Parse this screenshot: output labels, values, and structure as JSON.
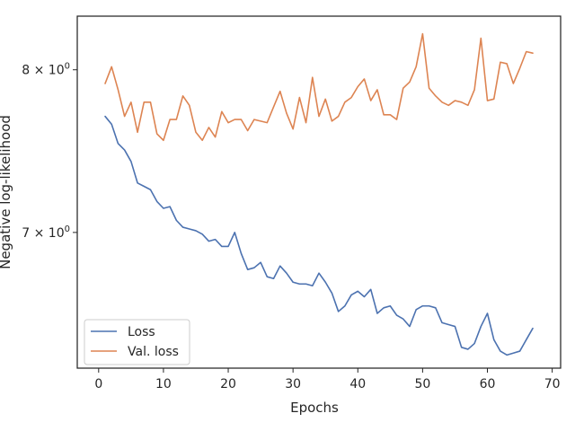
{
  "chart_data": {
    "type": "line",
    "title": "",
    "xlabel": "Epochs",
    "ylabel": "Negative log-likelihood",
    "yscale": "log",
    "xlim": [
      -3.3,
      71.3
    ],
    "ylim": [
      6.262,
      8.36
    ],
    "x_ticks": [
      {
        "value": 0,
        "label": "0"
      },
      {
        "value": 10,
        "label": "10"
      },
      {
        "value": 20,
        "label": "20"
      },
      {
        "value": 30,
        "label": "30"
      },
      {
        "value": 40,
        "label": "40"
      },
      {
        "value": 50,
        "label": "50"
      },
      {
        "value": 60,
        "label": "60"
      },
      {
        "value": 70,
        "label": "70"
      }
    ],
    "y_ticks": [
      {
        "value": 7,
        "label_base": "7",
        "label_sup": "0"
      },
      {
        "value": 8,
        "label_base": "8",
        "label_sup": "0"
      }
    ],
    "grid": false,
    "legend_position": "lower-left",
    "series": [
      {
        "name": "Loss",
        "color": "#4c72b0",
        "x": [
          1,
          2,
          3,
          4,
          5,
          6,
          7,
          8,
          9,
          10,
          11,
          12,
          13,
          14,
          15,
          16,
          17,
          18,
          19,
          20,
          21,
          22,
          23,
          24,
          25,
          26,
          27,
          28,
          29,
          30,
          31,
          32,
          33,
          34,
          35,
          36,
          37,
          38,
          39,
          40,
          41,
          42,
          43,
          44,
          45,
          46,
          47,
          48,
          49,
          50,
          51,
          52,
          53,
          54,
          55,
          56,
          57,
          58,
          59,
          60,
          61,
          62,
          63,
          64,
          65,
          66,
          67
        ],
        "values": [
          7.7,
          7.65,
          7.53,
          7.49,
          7.42,
          7.29,
          7.27,
          7.25,
          7.18,
          7.14,
          7.15,
          7.07,
          7.03,
          7.02,
          7.01,
          6.99,
          6.95,
          6.96,
          6.92,
          6.92,
          7.0,
          6.88,
          6.79,
          6.8,
          6.83,
          6.75,
          6.74,
          6.81,
          6.77,
          6.72,
          6.71,
          6.71,
          6.7,
          6.77,
          6.72,
          6.66,
          6.56,
          6.59,
          6.65,
          6.67,
          6.64,
          6.68,
          6.55,
          6.58,
          6.59,
          6.54,
          6.52,
          6.48,
          6.57,
          6.59,
          6.59,
          6.58,
          6.5,
          6.49,
          6.48,
          6.37,
          6.36,
          6.39,
          6.48,
          6.55,
          6.41,
          6.35,
          6.33,
          6.34,
          6.35,
          6.41,
          6.47
        ]
      },
      {
        "name": "Val. loss",
        "color": "#dd8452",
        "x": [
          1,
          2,
          3,
          4,
          5,
          6,
          7,
          8,
          9,
          10,
          11,
          12,
          13,
          14,
          15,
          16,
          17,
          18,
          19,
          20,
          21,
          22,
          23,
          24,
          25,
          26,
          27,
          28,
          29,
          30,
          31,
          32,
          33,
          34,
          35,
          36,
          37,
          38,
          39,
          40,
          41,
          42,
          43,
          44,
          45,
          46,
          47,
          48,
          49,
          50,
          51,
          52,
          53,
          54,
          55,
          56,
          57,
          58,
          59,
          60,
          61,
          62,
          63,
          64,
          65,
          66,
          67
        ],
        "values": [
          7.91,
          8.02,
          7.87,
          7.7,
          7.79,
          7.6,
          7.79,
          7.79,
          7.59,
          7.55,
          7.68,
          7.68,
          7.83,
          7.77,
          7.6,
          7.55,
          7.63,
          7.57,
          7.73,
          7.66,
          7.68,
          7.68,
          7.61,
          7.68,
          7.67,
          7.66,
          7.76,
          7.86,
          7.72,
          7.62,
          7.82,
          7.66,
          7.95,
          7.7,
          7.81,
          7.67,
          7.7,
          7.79,
          7.82,
          7.89,
          7.94,
          7.8,
          7.87,
          7.71,
          7.71,
          7.68,
          7.88,
          7.92,
          8.02,
          8.24,
          7.88,
          7.83,
          7.79,
          7.77,
          7.8,
          7.79,
          7.77,
          7.87,
          8.21,
          7.8,
          7.81,
          8.05,
          8.04,
          7.91,
          8.01,
          8.12,
          8.11
        ]
      }
    ]
  }
}
